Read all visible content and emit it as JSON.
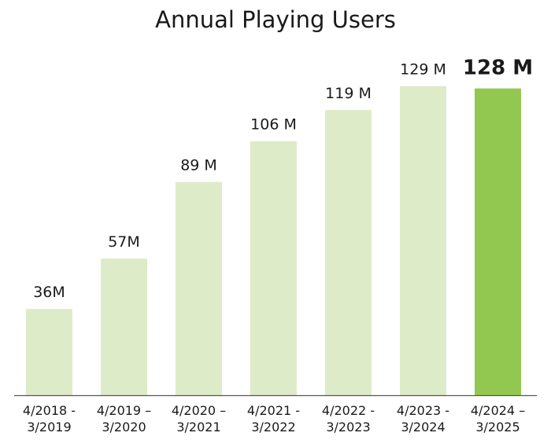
{
  "chart_data": {
    "type": "bar",
    "title": "Annual Playing Users",
    "xlabel": "",
    "ylabel": "",
    "unit": "M",
    "ylim": [
      0,
      140
    ],
    "categories": [
      [
        "4/2018 -",
        "3/2019"
      ],
      [
        "4/2019 –",
        "3/2020"
      ],
      [
        "4/2020 –",
        "3/2021"
      ],
      [
        "4/2021 -",
        "3/2022"
      ],
      [
        "4/2022 -",
        "3/2023"
      ],
      [
        "4/2023 -",
        "3/2024"
      ],
      [
        "4/2024 –",
        "3/2025"
      ]
    ],
    "values": [
      36,
      57,
      89,
      106,
      119,
      129,
      128
    ],
    "value_labels": [
      "36M",
      "57M",
      "89 M",
      "106 M",
      "119 M",
      "129 M",
      "128 M"
    ],
    "highlight_index": 6,
    "colors": {
      "bar": "#deebc8",
      "highlight": "#92c84f",
      "baseline": "#555555",
      "text": "#1a1a1a"
    }
  }
}
